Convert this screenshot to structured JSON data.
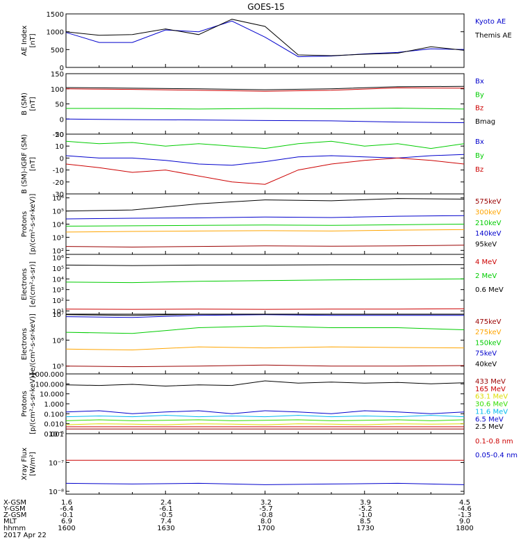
{
  "title": "GOES-15",
  "colors": {
    "black": "#000000",
    "blue": "#0000cc",
    "green": "#00cc00",
    "red": "#cc0000",
    "orange": "#ffa500",
    "yellow": "#dddd00",
    "cyan": "#00bbee",
    "purple": "#9900cc",
    "darkred": "#990000",
    "brightgreen": "#33dd00"
  },
  "footer": {
    "row_labels": [
      "X-GSM",
      "Y-GSM",
      "Z-GSM",
      "MLT",
      "hhmm",
      "2017 Apr 22"
    ],
    "columns": [
      {
        "x_gsm": "1.6",
        "y_gsm": "-6.4",
        "z_gsm": "-0.1",
        "mlt": "6.9",
        "hhmm": "1600"
      },
      {
        "x_gsm": "2.4",
        "y_gsm": "-6.1",
        "z_gsm": "-0.5",
        "mlt": "7.4",
        "hhmm": "1630"
      },
      {
        "x_gsm": "3.2",
        "y_gsm": "-5.7",
        "z_gsm": "-0.8",
        "mlt": "8.0",
        "hhmm": "1700"
      },
      {
        "x_gsm": "3.9",
        "y_gsm": "-5.2",
        "z_gsm": "-1.0",
        "mlt": "8.5",
        "hhmm": "1730"
      },
      {
        "x_gsm": "4.5",
        "y_gsm": "-4.6",
        "z_gsm": "-1.3",
        "mlt": "9.0",
        "hhmm": "1800"
      }
    ]
  },
  "chart_data": [
    {
      "type": "line",
      "scale": "linear",
      "ylabel": "AE Index\n[nT]",
      "ylim": [
        0,
        1500
      ],
      "ticks": [
        0,
        500,
        1000,
        1500
      ],
      "tick_labels": [
        "0",
        "500",
        "1000",
        "1500"
      ],
      "x_minutes": [
        0,
        10,
        20,
        30,
        40,
        50,
        60,
        70,
        80,
        90,
        100,
        110,
        120
      ],
      "series": [
        {
          "name": "Kyoto AE",
          "color": "blue",
          "values": [
            980,
            700,
            700,
            1050,
            1000,
            1300,
            850,
            300,
            320,
            380,
            420,
            520,
            500
          ]
        },
        {
          "name": "Themis AE",
          "color": "black",
          "values": [
            1000,
            900,
            920,
            1080,
            920,
            1350,
            1150,
            350,
            330,
            370,
            400,
            580,
            480
          ]
        }
      ]
    },
    {
      "type": "line",
      "scale": "linear",
      "ylabel": "B (SM)\n[nT]",
      "ylim": [
        -50,
        150
      ],
      "ticks": [
        -50,
        0,
        50,
        100,
        150
      ],
      "tick_labels": [
        "-50",
        "0",
        "50",
        "100",
        "150"
      ],
      "x_minutes": [
        0,
        20,
        40,
        60,
        80,
        100,
        120
      ],
      "series": [
        {
          "name": "Bx",
          "color": "blue",
          "values": [
            0,
            -2,
            -3,
            -5,
            -6,
            -10,
            -12
          ]
        },
        {
          "name": "By",
          "color": "green",
          "values": [
            35,
            35,
            33,
            35,
            34,
            36,
            33
          ]
        },
        {
          "name": "Bz",
          "color": "red",
          "values": [
            100,
            98,
            95,
            92,
            95,
            103,
            102
          ]
        },
        {
          "name": "Bmag",
          "color": "black",
          "values": [
            104,
            102,
            100,
            97,
            100,
            107,
            108
          ]
        }
      ]
    },
    {
      "type": "line",
      "scale": "linear",
      "ylabel": "B (SM)-IGRF (SM)\n[nT]",
      "ylim": [
        -30,
        20
      ],
      "ticks": [
        -30,
        -20,
        -10,
        0,
        10,
        20
      ],
      "tick_labels": [
        "-30",
        "-20",
        "-10",
        "0",
        "10",
        "20"
      ],
      "x_minutes": [
        0,
        10,
        20,
        30,
        40,
        50,
        60,
        70,
        80,
        90,
        100,
        110,
        120
      ],
      "series": [
        {
          "name": "Bx",
          "color": "blue",
          "values": [
            2,
            0,
            0,
            -2,
            -5,
            -6,
            -3,
            1,
            2,
            1,
            0,
            2,
            3
          ]
        },
        {
          "name": "By",
          "color": "green",
          "values": [
            14,
            12,
            13,
            10,
            12,
            10,
            8,
            12,
            14,
            10,
            12,
            8,
            12
          ]
        },
        {
          "name": "Bz",
          "color": "red",
          "values": [
            -5,
            -8,
            -12,
            -10,
            -15,
            -20,
            -22,
            -10,
            -5,
            -2,
            0,
            -2,
            -5
          ]
        }
      ]
    },
    {
      "type": "line",
      "scale": "log",
      "ylabel": "Protons\n[p/(cm²-s-sr-keV)]",
      "ylim": [
        50,
        2000000
      ],
      "ticks": [
        100,
        1000,
        10000,
        100000,
        1000000
      ],
      "tick_labels": [
        "10²",
        "10³",
        "10⁴",
        "10⁵",
        "10⁶"
      ],
      "x_minutes": [
        0,
        20,
        40,
        60,
        80,
        100,
        120
      ],
      "series": [
        {
          "name": "575keV",
          "color": "darkred",
          "values": [
            200,
            180,
            200,
            220,
            210,
            220,
            250
          ]
        },
        {
          "name": "300keV",
          "color": "orange",
          "values": [
            2500,
            2800,
            3000,
            3200,
            3000,
            3500,
            3800
          ]
        },
        {
          "name": "210keV",
          "color": "green",
          "values": [
            7000,
            7500,
            8000,
            8500,
            8000,
            9000,
            10000
          ]
        },
        {
          "name": "140keV",
          "color": "blue",
          "values": [
            25000,
            28000,
            30000,
            35000,
            32000,
            40000,
            45000
          ]
        },
        {
          "name": "95keV",
          "color": "black",
          "values": [
            100000,
            120000,
            350000,
            700000,
            600000,
            900000,
            800000
          ]
        }
      ]
    },
    {
      "type": "line",
      "scale": "log",
      "ylabel": "Electrons\n[e/(cm²-s-sr)]",
      "ylim": [
        5,
        2000000
      ],
      "ticks": [
        10,
        100,
        1000,
        10000,
        100000,
        1000000
      ],
      "tick_labels": [
        "10¹",
        "10²",
        "10³",
        "10⁴",
        "10⁵",
        "10⁶"
      ],
      "x_minutes": [
        0,
        20,
        40,
        60,
        80,
        100,
        120
      ],
      "series": [
        {
          "name": "4 MeV",
          "color": "red",
          "values": [
            15,
            14,
            15,
            14,
            15,
            15,
            16
          ]
        },
        {
          "name": "2 MeV",
          "color": "green",
          "values": [
            5000,
            4500,
            6000,
            7000,
            8000,
            9000,
            10000
          ]
        },
        {
          "name": "0.6 MeV",
          "color": "black",
          "values": [
            200000,
            180000,
            200000,
            200000,
            210000,
            210000,
            220000
          ]
        }
      ]
    },
    {
      "type": "line",
      "scale": "log",
      "ylabel": "Electrons\n[e/(cm²-s-sr-keV)]",
      "ylim": [
        50000,
        10000000
      ],
      "ticks": [
        100000,
        1000000,
        10000000
      ],
      "tick_labels": [
        "10⁵",
        "10⁶",
        "10⁷"
      ],
      "x_minutes": [
        0,
        20,
        40,
        60,
        80,
        100,
        120
      ],
      "series": [
        {
          "name": "475keV",
          "color": "darkred",
          "values": [
            100000,
            95000,
            100000,
            110000,
            100000,
            100000,
            105000
          ]
        },
        {
          "name": "275keV",
          "color": "orange",
          "values": [
            450000,
            420000,
            550000,
            500000,
            550000,
            520000,
            500000
          ]
        },
        {
          "name": "150keV",
          "color": "green",
          "values": [
            2000000,
            1800000,
            3000000,
            3500000,
            3000000,
            3000000,
            2500000
          ]
        },
        {
          "name": "75keV",
          "color": "blue",
          "values": [
            8000000,
            7500000,
            9000000,
            9500000,
            9000000,
            9000000,
            9000000
          ]
        },
        {
          "name": "40keV",
          "color": "black",
          "values": [
            9500000,
            9000000,
            9800000,
            9900000,
            9800000,
            9800000,
            9800000
          ]
        }
      ]
    },
    {
      "type": "line",
      "scale": "log",
      "ylabel": "Protons\n[p/(cm²-s-sr-keV)]",
      "ylim": [
        0.001,
        1000
      ],
      "ticks": [
        0.001,
        0.01,
        0.1,
        1,
        10,
        100,
        1000
      ],
      "tick_labels": [
        "0.001",
        "0.010",
        "0.100",
        "1.000",
        "10.000",
        "100.000",
        "1000.000"
      ],
      "x_minutes": [
        0,
        10,
        20,
        30,
        40,
        50,
        60,
        70,
        80,
        90,
        100,
        110,
        120
      ],
      "series": [
        {
          "name": "433 MeV",
          "color": "darkred",
          "values": [
            0.003,
            0.003,
            0.003,
            0.003,
            0.003,
            0.003,
            0.003,
            0.003,
            0.003,
            0.003,
            0.003,
            0.003,
            0.003
          ]
        },
        {
          "name": "165 MeV",
          "color": "red",
          "values": [
            0.005,
            0.005,
            0.005,
            0.005,
            0.005,
            0.005,
            0.005,
            0.005,
            0.005,
            0.005,
            0.005,
            0.005,
            0.005
          ]
        },
        {
          "name": "63.1 MeV",
          "color": "yellow",
          "values": [
            0.008,
            0.01,
            0.009,
            0.008,
            0.01,
            0.009,
            0.008,
            0.01,
            0.009,
            0.008,
            0.01,
            0.009,
            0.01
          ]
        },
        {
          "name": "30.6 MeV",
          "color": "brightgreen",
          "values": [
            0.02,
            0.025,
            0.02,
            0.022,
            0.025,
            0.02,
            0.022,
            0.025,
            0.02,
            0.022,
            0.025,
            0.02,
            0.025
          ]
        },
        {
          "name": "11.6 MeV",
          "color": "cyan",
          "values": [
            0.05,
            0.06,
            0.05,
            0.07,
            0.05,
            0.06,
            0.05,
            0.07,
            0.05,
            0.06,
            0.05,
            0.07,
            0.05
          ]
        },
        {
          "name": "6.5 MeV",
          "color": "blue",
          "values": [
            0.15,
            0.2,
            0.1,
            0.15,
            0.2,
            0.1,
            0.2,
            0.15,
            0.1,
            0.2,
            0.15,
            0.1,
            0.15
          ]
        },
        {
          "name": "2.5 MeV",
          "color": "black",
          "values": [
            80,
            70,
            90,
            60,
            80,
            70,
            200,
            120,
            150,
            120,
            140,
            100,
            130
          ]
        }
      ]
    },
    {
      "type": "line",
      "scale": "log",
      "ylabel": "Xray Flux\n[W/m²]",
      "ylim": [
        8e-09,
        1e-06
      ],
      "ticks": [
        1e-08,
        1e-07,
        1e-06
      ],
      "tick_labels": [
        "10⁻⁸",
        "10⁻⁷",
        "10⁻⁶"
      ],
      "x_minutes": [
        0,
        20,
        40,
        60,
        80,
        100,
        120
      ],
      "series": [
        {
          "name": "0.1-0.8 nm",
          "color": "red",
          "values": [
            1.2e-07,
            1.2e-07,
            1.2e-07,
            1.2e-07,
            1.2e-07,
            1.2e-07,
            1.2e-07
          ]
        },
        {
          "name": "0.05-0.4 nm",
          "color": "blue",
          "values": [
            1.9e-08,
            1.8e-08,
            1.9e-08,
            1.7e-08,
            1.8e-08,
            1.9e-08,
            1.7e-08
          ]
        }
      ]
    }
  ]
}
